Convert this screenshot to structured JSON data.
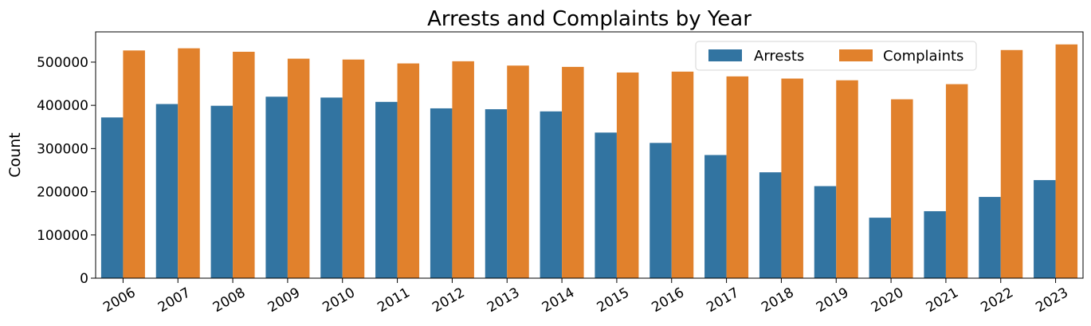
{
  "chart_data": {
    "type": "bar",
    "title": "Arrests and Complaints by Year",
    "xlabel": "",
    "ylabel": "Count",
    "categories": [
      "2006",
      "2007",
      "2008",
      "2009",
      "2010",
      "2011",
      "2012",
      "2013",
      "2014",
      "2015",
      "2016",
      "2017",
      "2018",
      "2019",
      "2020",
      "2021",
      "2022",
      "2023"
    ],
    "series": [
      {
        "name": "Arrests",
        "color": "#3274a1",
        "values": [
          372000,
          403000,
          399000,
          420000,
          418000,
          408000,
          393000,
          391000,
          386000,
          337000,
          313000,
          285000,
          245000,
          213000,
          140000,
          155000,
          188000,
          227000
        ]
      },
      {
        "name": "Complaints",
        "color": "#e1812c",
        "values": [
          527000,
          532000,
          524000,
          508000,
          506000,
          497000,
          502000,
          492000,
          489000,
          476000,
          478000,
          467000,
          462000,
          458000,
          414000,
          449000,
          528000,
          541000
        ]
      }
    ],
    "ylim": [
      0,
      570000
    ],
    "yticks": [
      0,
      100000,
      200000,
      300000,
      400000,
      500000
    ],
    "ytick_labels": [
      "0",
      "100000",
      "200000",
      "300000",
      "400000",
      "500000"
    ],
    "grid": false,
    "legend_position": "top-right"
  }
}
